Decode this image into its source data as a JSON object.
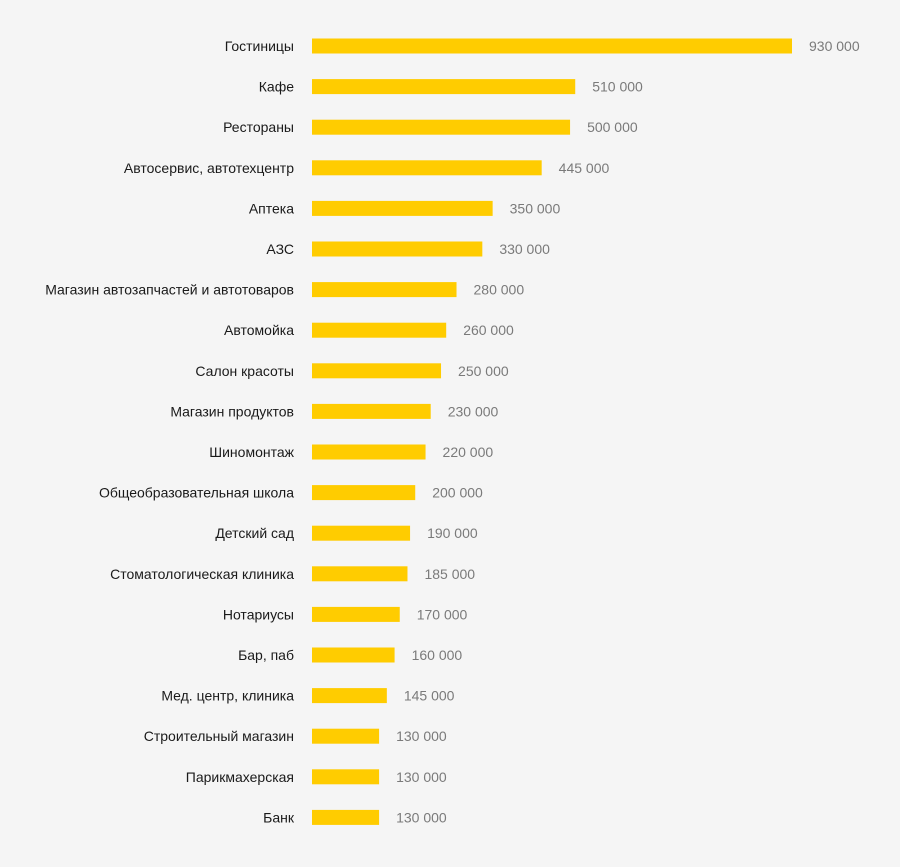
{
  "chart_data": {
    "type": "bar",
    "orientation": "horizontal",
    "title": "",
    "xlabel": "",
    "ylabel": "",
    "grid": false,
    "xlim": [
      0,
      930000
    ],
    "bar_color": "#ffcc00",
    "categories": [
      "Гостиницы",
      "Кафе",
      "Рестораны",
      "Автосервис, автотехцентр",
      "Аптека",
      "АЗС",
      "Магазин автозапчастей и автотоваров",
      "Автомойка",
      "Салон красоты",
      "Магазин продуктов",
      "Шиномонтаж",
      "Общеобразовательная школа",
      "Детский сад",
      "Стоматологическая клиника",
      "Нотариусы",
      "Бар, паб",
      "Мед. центр, клиника",
      "Строительный магазин",
      "Парикмахерская",
      "Банк"
    ],
    "values": [
      930000,
      510000,
      500000,
      445000,
      350000,
      330000,
      280000,
      260000,
      250000,
      230000,
      220000,
      200000,
      190000,
      185000,
      170000,
      160000,
      145000,
      130000,
      130000,
      130000
    ],
    "value_labels": [
      "930 000",
      "510 000",
      "500 000",
      "445 000",
      "350 000",
      "330 000",
      "280 000",
      "260 000",
      "250 000",
      "230 000",
      "220 000",
      "200 000",
      "190 000",
      "185 000",
      "170 000",
      "160 000",
      "145 000",
      "130 000",
      "130 000",
      "130 000"
    ]
  }
}
